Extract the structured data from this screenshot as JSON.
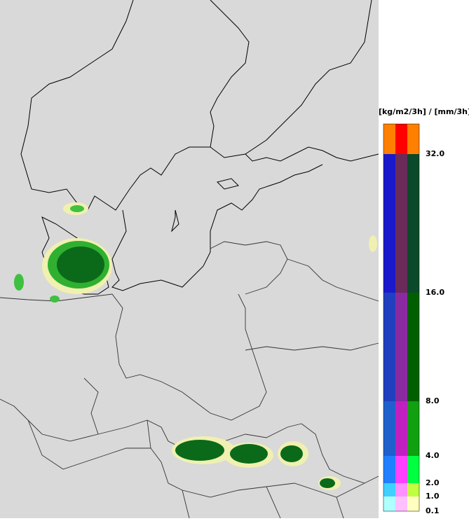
{
  "legend": {
    "title": "[kg/m2/3h] / [mm/3h]",
    "ticks": [
      "32.0",
      "16.0",
      "8.0",
      "4.0",
      "2.0",
      "1.0",
      "0.1"
    ]
  }
}
